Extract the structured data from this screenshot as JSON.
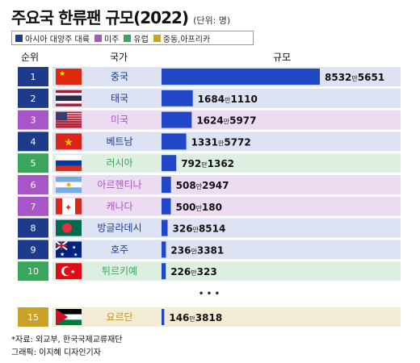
{
  "title": "주요국 한류팬 규모(2022)",
  "unit_note": "(단위: 명)",
  "legend": [
    {
      "label": "아시아 대양주 대륙",
      "color": "#1e3a8a"
    },
    {
      "label": "미주",
      "color": "#a855c7"
    },
    {
      "label": "유럽",
      "color": "#3aa55c"
    },
    {
      "label": "중동,아프리카",
      "color": "#c9a227"
    }
  ],
  "headers": {
    "rank": "순위",
    "country": "국가",
    "scale": "규모"
  },
  "ellipsis": "• • •",
  "footer": {
    "source": "*자료: 외교부, 한국국제교류재단",
    "credit": "그래픽: 이지혜 디자인기자"
  },
  "chart_data": {
    "type": "bar",
    "title": "주요국 한류팬 규모(2022)",
    "unit": "명",
    "rows": [
      {
        "rank": "1",
        "country": "중국",
        "value": 85325651,
        "label_main": "8532",
        "label_man": "만",
        "label_rest": "5651",
        "region": "asia"
      },
      {
        "rank": "2",
        "country": "태국",
        "value": 16841110,
        "label_main": "1684",
        "label_man": "만",
        "label_rest": "1110",
        "region": "asia"
      },
      {
        "rank": "3",
        "country": "미국",
        "value": 16245977,
        "label_main": "1624",
        "label_man": "만",
        "label_rest": "5977",
        "region": "americas"
      },
      {
        "rank": "4",
        "country": "베트남",
        "value": 13315772,
        "label_main": "1331",
        "label_man": "만",
        "label_rest": "5772",
        "region": "asia"
      },
      {
        "rank": "5",
        "country": "러시아",
        "value": 7921362,
        "label_main": "792",
        "label_man": "만",
        "label_rest": "1362",
        "region": "europe"
      },
      {
        "rank": "6",
        "country": "아르헨티나",
        "value": 5082947,
        "label_main": "508",
        "label_man": "만",
        "label_rest": "2947",
        "region": "americas"
      },
      {
        "rank": "7",
        "country": "캐나다",
        "value": 5000180,
        "label_main": "500",
        "label_man": "만",
        "label_rest": "180",
        "region": "americas"
      },
      {
        "rank": "8",
        "country": "방글라데시",
        "value": 3268514,
        "label_main": "326",
        "label_man": "만",
        "label_rest": "8514",
        "region": "asia"
      },
      {
        "rank": "9",
        "country": "호주",
        "value": 2363381,
        "label_main": "236",
        "label_man": "만",
        "label_rest": "3381",
        "region": "asia"
      },
      {
        "rank": "10",
        "country": "튀르키예",
        "value": 2260323,
        "label_main": "226",
        "label_man": "만",
        "label_rest": "323",
        "region": "europe"
      },
      {
        "rank": "15",
        "country": "요르단",
        "value": 1463818,
        "label_main": "146",
        "label_man": "만",
        "label_rest": "3818",
        "region": "middle_east_africa"
      }
    ]
  },
  "regions": {
    "asia": {
      "rank_bg": "#1e3a8a",
      "row_bg": "#dde3f2",
      "text": "#1e3a8a"
    },
    "americas": {
      "rank_bg": "#a855c7",
      "row_bg": "#ecdcf1",
      "text": "#a855c7"
    },
    "europe": {
      "rank_bg": "#3aa55c",
      "row_bg": "#dcefe0",
      "text": "#3aa55c"
    },
    "middle_east_africa": {
      "rank_bg": "#c9a227",
      "row_bg": "#f2ecd4",
      "text": "#b8941f"
    }
  },
  "flags": [
    "china-flag-icon",
    "thailand-flag-icon",
    "usa-flag-icon",
    "vietnam-flag-icon",
    "russia-flag-icon",
    "argentina-flag-icon",
    "canada-flag-icon",
    "bangladesh-flag-icon",
    "australia-flag-icon",
    "turkey-flag-icon",
    "jordan-flag-icon"
  ],
  "bar_color": "#1f47c8"
}
